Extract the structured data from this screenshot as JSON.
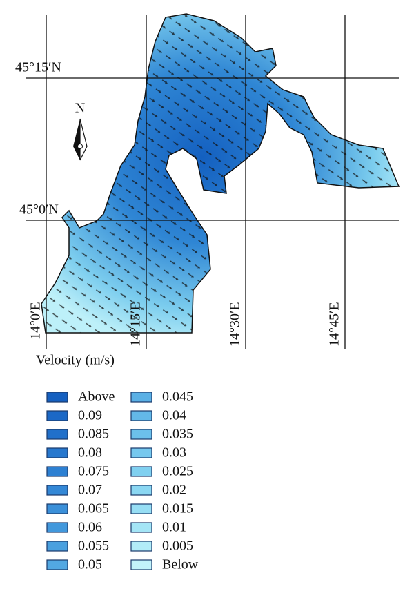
{
  "map": {
    "latitude_labels": [
      "45°15′N",
      "45°0′N"
    ],
    "longitude_labels": [
      "14°0′E",
      "14°15′E",
      "14°30′E",
      "14°45′E"
    ],
    "north_label": "N"
  },
  "legend": {
    "title": "Velocity (m/s)",
    "items": [
      {
        "label": "Above",
        "color": "#1560c0"
      },
      {
        "label": "0.09",
        "color": "#1b68c6"
      },
      {
        "label": "0.085",
        "color": "#2170ca"
      },
      {
        "label": "0.08",
        "color": "#2778ce"
      },
      {
        "label": "0.075",
        "color": "#2d80d2"
      },
      {
        "label": "0.07",
        "color": "#3488d6"
      },
      {
        "label": "0.065",
        "color": "#3b90d9"
      },
      {
        "label": "0.06",
        "color": "#4298dc"
      },
      {
        "label": "0.055",
        "color": "#4aa0df"
      },
      {
        "label": "0.05",
        "color": "#52a8e2"
      },
      {
        "label": "0.045",
        "color": "#5ab0e5"
      },
      {
        "label": "0.04",
        "color": "#63b8e8"
      },
      {
        "label": "0.035",
        "color": "#6cc0eb"
      },
      {
        "label": "0.03",
        "color": "#76c8ee"
      },
      {
        "label": "0.025",
        "color": "#80d0f0"
      },
      {
        "label": "0.02",
        "color": "#8bd7f2"
      },
      {
        "label": "0.015",
        "color": "#97def4"
      },
      {
        "label": "0.01",
        "color": "#a4e5f6"
      },
      {
        "label": "0.005",
        "color": "#b2ecf8"
      },
      {
        "label": "Below",
        "color": "#c2f3fa"
      }
    ]
  }
}
